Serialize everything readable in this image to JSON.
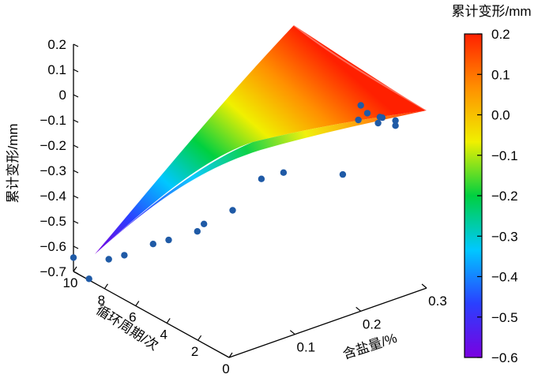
{
  "chart_data": {
    "type": "surface",
    "projection": "3d",
    "zlabel": "累计变形/mm",
    "xlabel": "含盐量/%",
    "ylabel": "循环周期/次",
    "colorbar_title": "累计变形/mm",
    "zlim": [
      -0.7,
      0.2
    ],
    "z_ticks": [
      "0.2",
      "0.1",
      "0",
      "−0.1",
      "−0.2",
      "−0.3",
      "−0.4",
      "−0.5",
      "−0.6",
      "−0.7"
    ],
    "x_ticks": [
      "0.1",
      "0.2",
      "0.3"
    ],
    "y_ticks": [
      "10",
      "8",
      "6",
      "4",
      "2",
      "0"
    ],
    "colorbar_range": [
      -0.6,
      0.2
    ],
    "colorbar_ticks": [
      "0.2",
      "0.1",
      "0.0",
      "−0.1",
      "−0.2",
      "−0.3",
      "−0.4",
      "−0.5",
      "−0.6"
    ],
    "colormap": [
      "#7a00e0",
      "#2a40ff",
      "#00c8ff",
      "#00d040",
      "#f0f000",
      "#ff9000",
      "#ff2000"
    ],
    "marker_color": "#1f5aa6",
    "scatter_points": [
      {
        "salt": 0.0,
        "cycles": 10,
        "deformation": -0.57
      },
      {
        "salt": 0.0,
        "cycles": 9,
        "deformation": -0.62
      },
      {
        "salt": 0.03,
        "cycles": 9,
        "deformation": -0.57
      },
      {
        "salt": 0.03,
        "cycles": 8,
        "deformation": -0.52
      },
      {
        "salt": 0.05,
        "cycles": 7,
        "deformation": -0.46
      },
      {
        "salt": 0.05,
        "cycles": 6,
        "deformation": -0.41
      },
      {
        "salt": 0.07,
        "cycles": 5,
        "deformation": -0.36
      },
      {
        "salt": 0.08,
        "cycles": 5,
        "deformation": -0.34
      },
      {
        "salt": 0.1,
        "cycles": 4,
        "deformation": -0.27
      },
      {
        "salt": 0.12,
        "cycles": 3,
        "deformation": -0.13
      },
      {
        "salt": 0.13,
        "cycles": 2,
        "deformation": -0.08
      },
      {
        "salt": 0.2,
        "cycles": 0,
        "deformation": 0.19
      },
      {
        "salt": 0.21,
        "cycles": 0,
        "deformation": 0.15
      },
      {
        "salt": 0.22,
        "cycles": 1,
        "deformation": 0.08
      },
      {
        "salt": 0.22,
        "cycles": 2,
        "deformation": -0.17
      },
      {
        "salt": 0.25,
        "cycles": 1,
        "deformation": 0.04
      },
      {
        "salt": 0.28,
        "cycles": 2,
        "deformation": -0.0
      },
      {
        "salt": 0.3,
        "cycles": 2,
        "deformation": -0.05
      },
      {
        "salt": 0.3,
        "cycles": 3,
        "deformation": -0.05
      },
      {
        "salt": 0.3,
        "cycles": 2,
        "deformation": -0.03
      }
    ]
  }
}
